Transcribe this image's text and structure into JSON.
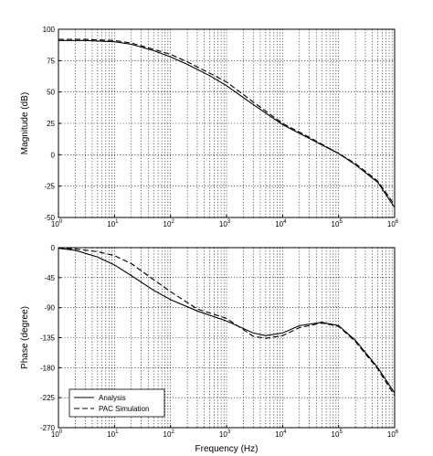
{
  "chart_data": [
    {
      "type": "line",
      "xscale": "log",
      "xlim": [
        1,
        1000000
      ],
      "ylim": [
        -50,
        100
      ],
      "xlabel": "",
      "ylabel": "Magnitude (dB)",
      "xtick_labels": [
        "10^0",
        "10^1",
        "10^2",
        "10^3",
        "10^4",
        "10^5",
        "10^6"
      ],
      "ytick_labels": [
        "-50",
        "-25",
        "0",
        "25",
        "50",
        "75",
        "100"
      ],
      "yticks": [
        -50,
        -25,
        0,
        25,
        50,
        75,
        100
      ],
      "grid": true,
      "series": [
        {
          "name": "Analysis",
          "style": "solid",
          "x": [
            1,
            3,
            10,
            20,
            50,
            100,
            200,
            500,
            1000,
            3000,
            10000,
            30000,
            100000,
            200000,
            500000,
            1000000
          ],
          "y": [
            91,
            91,
            90,
            88,
            83,
            78,
            72,
            63,
            55,
            40,
            24,
            13,
            1,
            -8,
            -22,
            -42
          ]
        },
        {
          "name": "PAC Simulation",
          "style": "dashed",
          "x": [
            1,
            3,
            10,
            20,
            50,
            100,
            200,
            500,
            1000,
            3000,
            10000,
            30000,
            100000,
            200000,
            500000,
            1000000
          ],
          "y": [
            92,
            92,
            91,
            89,
            84,
            80,
            74,
            65,
            58,
            42,
            25,
            14,
            1,
            -7,
            -21,
            -40
          ]
        }
      ]
    },
    {
      "type": "line",
      "xscale": "log",
      "xlim": [
        1,
        1000000
      ],
      "ylim": [
        -270,
        0
      ],
      "xlabel": "Frequency (Hz)",
      "ylabel": "Phase (degree)",
      "xtick_labels": [
        "10^0",
        "10^1",
        "10^2",
        "10^3",
        "10^4",
        "10^5",
        "10^6"
      ],
      "ytick_labels": [
        "-270",
        "-225",
        "-180",
        "-135",
        "-90",
        "-45",
        "0"
      ],
      "yticks": [
        -270,
        -225,
        -180,
        -135,
        -90,
        -45,
        0
      ],
      "grid": true,
      "legend": {
        "position": "lower-left",
        "entries": [
          "Analysis",
          "PAC Simulation"
        ]
      },
      "series": [
        {
          "name": "Analysis",
          "style": "solid",
          "x": [
            1,
            2,
            5,
            10,
            20,
            50,
            100,
            300,
            1000,
            3000,
            5000,
            10000,
            20000,
            50000,
            100000,
            200000,
            500000,
            1000000
          ],
          "y": [
            -1,
            -4,
            -14,
            -26,
            -42,
            -64,
            -78,
            -95,
            -110,
            -128,
            -132,
            -128,
            -117,
            -112,
            -117,
            -139,
            -180,
            -218
          ]
        },
        {
          "name": "PAC Simulation",
          "style": "dashed",
          "x": [
            1,
            2,
            5,
            10,
            20,
            50,
            100,
            300,
            1000,
            3000,
            5000,
            10000,
            20000,
            50000,
            100000,
            200000,
            500000,
            1000000
          ],
          "y": [
            0,
            -2,
            -6,
            -12,
            -24,
            -48,
            -66,
            -92,
            -106,
            -133,
            -136,
            -132,
            -120,
            -113,
            -118,
            -141,
            -182,
            -222
          ]
        }
      ]
    }
  ]
}
